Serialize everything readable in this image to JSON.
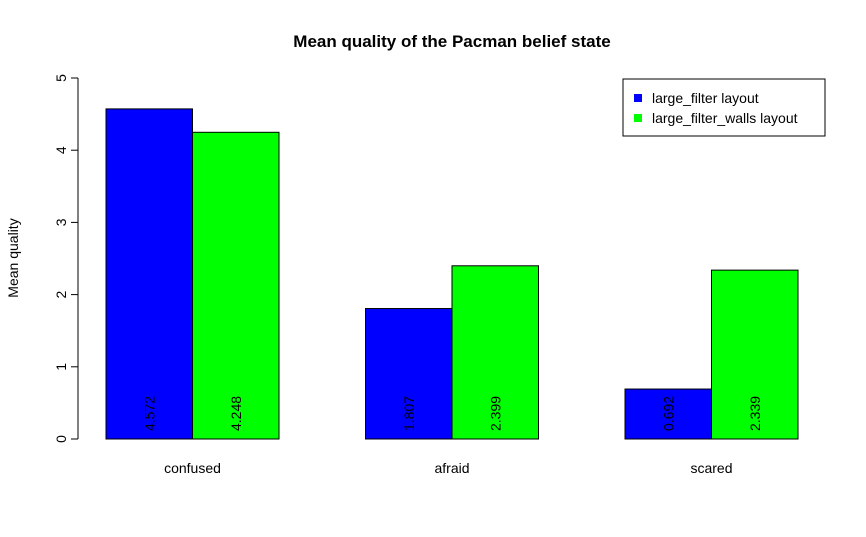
{
  "chart_data": {
    "type": "bar",
    "title": "Mean quality of the Pacman belief state",
    "ylabel": "Mean quality",
    "xlabel": "",
    "ylim": [
      0,
      5
    ],
    "yticks": [
      "0",
      "1",
      "2",
      "3",
      "4",
      "5"
    ],
    "categories": [
      "confused",
      "afraid",
      "scared"
    ],
    "series": [
      {
        "name": "large_filter layout",
        "color": "#0000ff",
        "values": [
          4.572,
          1.807,
          0.692
        ],
        "labels": [
          "4.572",
          "1.807",
          "0.692"
        ]
      },
      {
        "name": "large_filter_walls layout",
        "color": "#00ff00",
        "values": [
          4.248,
          2.399,
          2.339
        ],
        "labels": [
          "4.248",
          "2.399",
          "2.339"
        ]
      }
    ],
    "legend_position": "top-right",
    "grid": false
  }
}
